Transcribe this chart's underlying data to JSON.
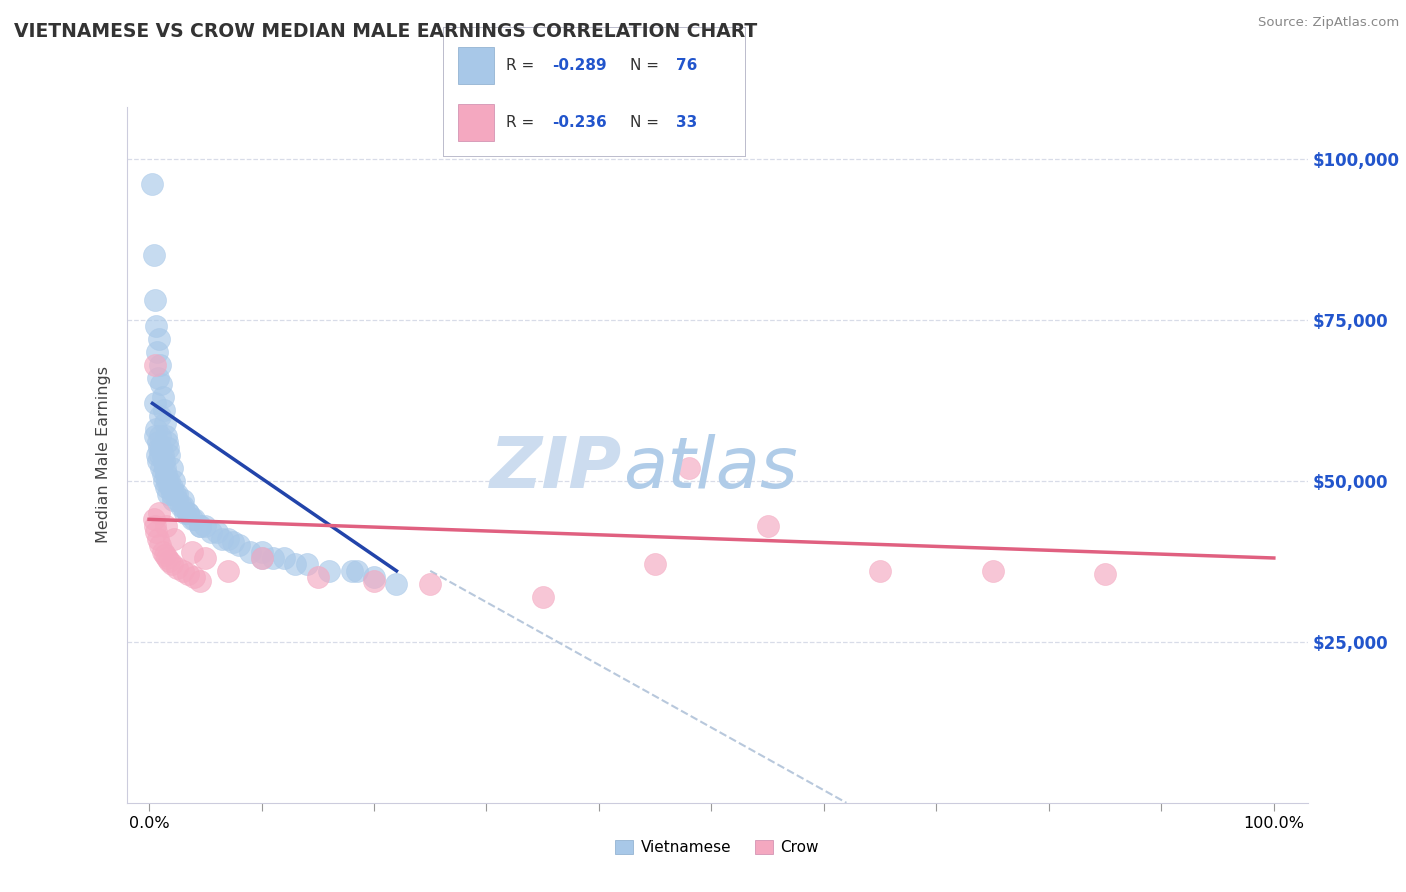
{
  "title": "VIETNAMESE VS CROW MEDIAN MALE EARNINGS CORRELATION CHART",
  "source": "Source: ZipAtlas.com",
  "ylabel": "Median Male Earnings",
  "yticks": [
    25000,
    50000,
    75000,
    100000
  ],
  "ytick_labels": [
    "$25,000",
    "$50,000",
    "$75,000",
    "$100,000"
  ],
  "blue_color": "#a8c8e8",
  "pink_color": "#f4a8c0",
  "trend_blue": "#2244aa",
  "trend_pink": "#e06080",
  "trend_gray": "#b8c8dc",
  "background": "#ffffff",
  "watermark_zip_color": "#c0d0e8",
  "watermark_atlas_color": "#b0c8e0",
  "title_color": "#333333",
  "source_color": "#888888",
  "right_axis_color": "#2255cc",
  "legend_text_color": "#333333",
  "legend_value_color": "#2255cc",
  "grid_color": "#d8dce8",
  "spine_color": "#ccccdd",
  "xtick_color": "#999999",
  "viet_x": [
    0.5,
    0.5,
    0.6,
    0.7,
    0.8,
    0.8,
    0.9,
    1.0,
    1.0,
    1.0,
    1.1,
    1.1,
    1.2,
    1.2,
    1.3,
    1.3,
    1.4,
    1.5,
    1.5,
    1.6,
    1.7,
    1.8,
    1.9,
    2.0,
    2.0,
    2.1,
    2.3,
    2.5,
    2.8,
    3.0,
    3.2,
    3.5,
    3.8,
    4.0,
    4.5,
    5.0,
    5.5,
    6.0,
    7.0,
    7.5,
    8.0,
    9.0,
    10.0,
    11.0,
    12.0,
    13.0,
    14.0,
    16.0,
    18.0,
    20.0,
    22.0,
    0.3,
    0.4,
    0.5,
    0.6,
    0.7,
    0.8,
    0.9,
    1.0,
    1.1,
    1.2,
    1.3,
    1.4,
    1.5,
    1.6,
    1.7,
    1.8,
    2.0,
    2.2,
    2.5,
    3.0,
    3.5,
    4.5,
    6.5,
    10.0,
    18.5
  ],
  "viet_y": [
    62000,
    57000,
    58000,
    54000,
    56000,
    53000,
    55000,
    60000,
    57000,
    54000,
    55000,
    52000,
    54000,
    51000,
    53000,
    50000,
    52000,
    51000,
    49000,
    50000,
    48000,
    50000,
    49000,
    49000,
    48000,
    47000,
    48000,
    47000,
    46000,
    46000,
    45000,
    45000,
    44000,
    44000,
    43000,
    43000,
    42000,
    42000,
    41000,
    40500,
    40000,
    39000,
    39000,
    38000,
    38000,
    37000,
    37000,
    36000,
    36000,
    35000,
    34000,
    96000,
    85000,
    78000,
    74000,
    70000,
    66000,
    72000,
    68000,
    65000,
    63000,
    61000,
    59000,
    57000,
    56000,
    55000,
    54000,
    52000,
    50000,
    48000,
    47000,
    45000,
    43000,
    41000,
    38000,
    36000
  ],
  "crow_x": [
    0.4,
    0.5,
    0.6,
    0.8,
    1.0,
    1.2,
    1.4,
    1.6,
    1.8,
    2.0,
    2.5,
    3.0,
    3.5,
    4.0,
    4.5,
    5.0,
    7.0,
    10.0,
    15.0,
    20.0,
    25.0,
    35.0,
    45.0,
    55.0,
    65.0,
    75.0,
    85.0,
    0.5,
    0.9,
    1.5,
    2.2,
    3.8,
    48.0
  ],
  "crow_y": [
    44000,
    43000,
    42000,
    41000,
    40000,
    39000,
    38500,
    38000,
    37500,
    37000,
    36500,
    36000,
    35500,
    35000,
    34500,
    38000,
    36000,
    38000,
    35000,
    34500,
    34000,
    32000,
    37000,
    43000,
    36000,
    36000,
    35500,
    68000,
    45000,
    43000,
    41000,
    39000,
    52000
  ],
  "blue_trend_x0": 0.3,
  "blue_trend_y0": 62000,
  "blue_trend_x1": 22.0,
  "blue_trend_y1": 36000,
  "pink_trend_x0": 0.0,
  "pink_trend_y0": 44000,
  "pink_trend_x1": 100.0,
  "pink_trend_y1": 38000,
  "gray_dash_x0": 25.0,
  "gray_dash_y0": 36000,
  "gray_dash_x1": 62.0,
  "gray_dash_y1": 0,
  "xlim": [
    -2,
    103
  ],
  "ylim": [
    0,
    108000
  ],
  "xmin_pct": 0.0,
  "xmax_pct": 100.0
}
